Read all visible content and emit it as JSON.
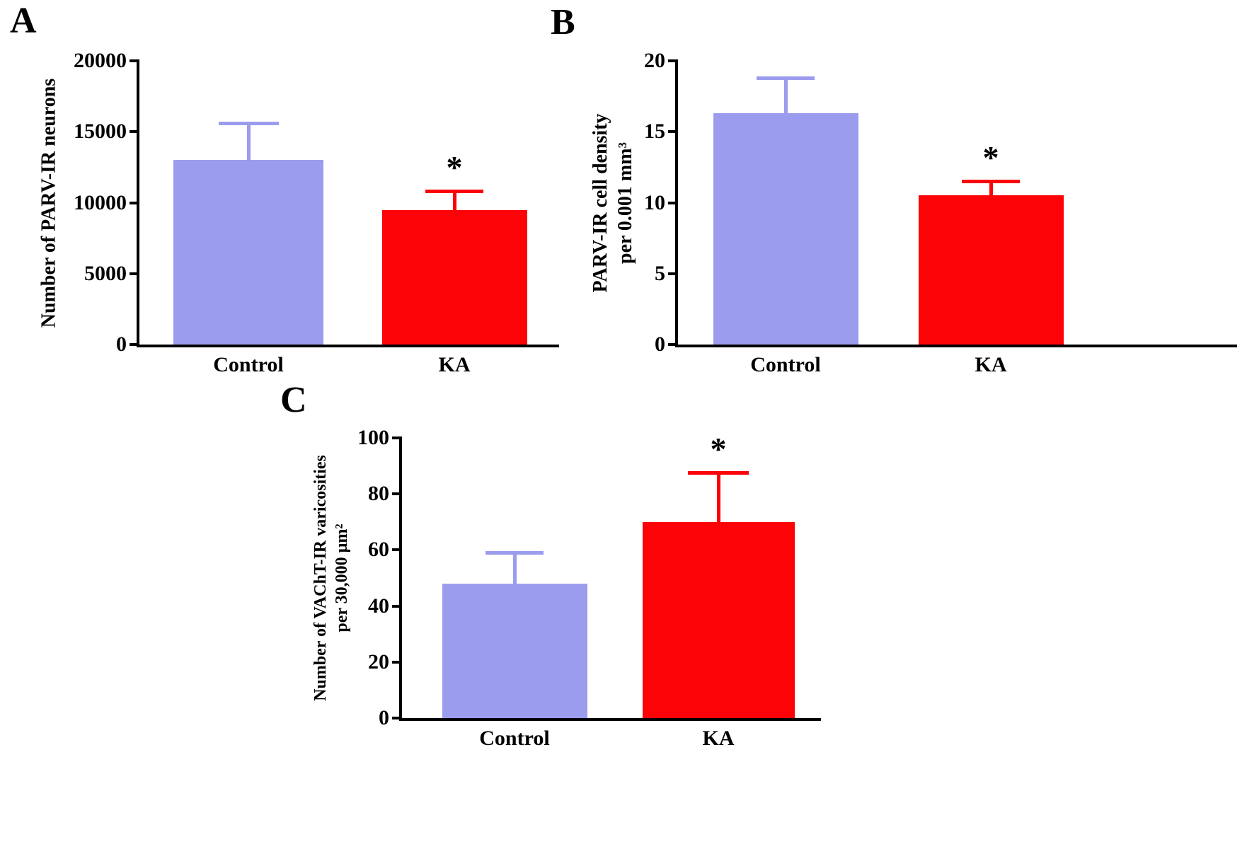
{
  "figure": {
    "background": "#ffffff"
  },
  "colors": {
    "control_bar": "#9c9cee",
    "ka_bar": "#fb0307",
    "axis": "#000000",
    "text": "#000000"
  },
  "chart_data": [
    {
      "panel": "A",
      "type": "bar",
      "categories": [
        "Control",
        "KA"
      ],
      "values": [
        13000,
        9500
      ],
      "errors_up": [
        2600,
        1300
      ],
      "ylim": [
        0,
        20000
      ],
      "yticks": [
        0,
        5000,
        10000,
        15000,
        20000
      ],
      "ylabel_lines": [
        "Number of PARV-IR neurons"
      ],
      "significance": [
        "",
        "*"
      ],
      "grid": false,
      "legend": false
    },
    {
      "panel": "B",
      "type": "bar",
      "categories": [
        "Control",
        "KA"
      ],
      "values": [
        16.3,
        10.5
      ],
      "errors_up": [
        2.5,
        1.0
      ],
      "ylim": [
        0,
        20
      ],
      "yticks": [
        0,
        5,
        10,
        15,
        20
      ],
      "ylabel_lines": [
        "PARV-IR cell density",
        "per 0.001 mm³"
      ],
      "significance": [
        "",
        "*"
      ],
      "grid": false,
      "legend": false
    },
    {
      "panel": "C",
      "type": "bar",
      "categories": [
        "Control",
        "KA"
      ],
      "values": [
        48,
        70
      ],
      "errors_up": [
        11,
        17.5
      ],
      "ylim": [
        0,
        100
      ],
      "yticks": [
        0,
        20,
        40,
        60,
        80,
        100
      ],
      "ylabel_lines": [
        "Number of VAChT-IR varicosities",
        "per 30,000 µm²"
      ],
      "significance": [
        "",
        "*"
      ],
      "grid": false,
      "legend": false
    }
  ]
}
